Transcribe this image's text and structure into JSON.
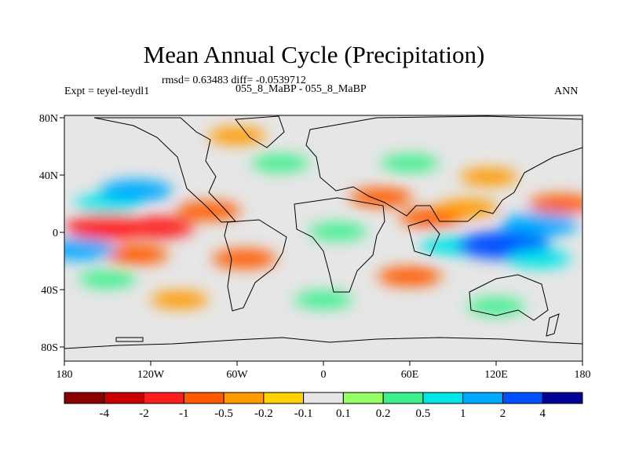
{
  "title": "Mean Annual Cycle (Precipitation)",
  "stats_line": "rmsd= 0.63483 diff= -0.0539712",
  "experiment_label": "Expt = teyel-teydl1",
  "comparison_label": "055_8_MaBP - 055_8_MaBP",
  "season_label": "ANN",
  "chart_data": {
    "type": "heatmap",
    "title": "Mean Annual Cycle (Precipitation)",
    "x_ticks": [
      "180",
      "120W",
      "60W",
      "0",
      "60E",
      "120E",
      "180"
    ],
    "y_ticks": [
      "80N",
      "40N",
      "0",
      "40S",
      "80S"
    ],
    "x_range": [
      -180,
      180
    ],
    "y_range": [
      -90,
      90
    ],
    "colorbar": {
      "colors": [
        "#8c0000",
        "#c80000",
        "#ff1e1e",
        "#ff5a00",
        "#ff9a00",
        "#ffd200",
        "#e6e6e6",
        "#96ff64",
        "#3cf08c",
        "#00e6e6",
        "#00aaff",
        "#0050ff",
        "#000096"
      ],
      "labels": [
        "-4",
        "-2",
        "-1",
        "-0.5",
        "-0.2",
        "-0.1",
        "0.1",
        "0.2",
        "0.5",
        "1",
        "2",
        "4"
      ]
    },
    "anomaly_regions": [
      {
        "lon": -150,
        "lat": 8,
        "value": -2
      },
      {
        "lon": -115,
        "lat": 8,
        "value": -1.2
      },
      {
        "lon": -80,
        "lat": 20,
        "value": -0.7
      },
      {
        "lon": -130,
        "lat": -12,
        "value": -0.7
      },
      {
        "lon": -55,
        "lat": -15,
        "value": -0.7
      },
      {
        "lon": -150,
        "lat": 25,
        "value": 0.8
      },
      {
        "lon": -130,
        "lat": 35,
        "value": 1.2
      },
      {
        "lon": -170,
        "lat": -8,
        "value": 1.2
      },
      {
        "lon": -150,
        "lat": -30,
        "value": 0.3
      },
      {
        "lon": 10,
        "lat": 5,
        "value": 0.3
      },
      {
        "lon": 40,
        "lat": 30,
        "value": -0.6
      },
      {
        "lon": 75,
        "lat": 15,
        "value": -0.7
      },
      {
        "lon": 100,
        "lat": 22,
        "value": -0.5
      },
      {
        "lon": 60,
        "lat": -28,
        "value": -0.7
      },
      {
        "lon": 90,
        "lat": -5,
        "value": 0.8
      },
      {
        "lon": 125,
        "lat": -5,
        "value": 2.5
      },
      {
        "lon": 150,
        "lat": 10,
        "value": 1.5
      },
      {
        "lon": 150,
        "lat": -15,
        "value": 0.6
      },
      {
        "lon": 165,
        "lat": 25,
        "value": -0.7
      },
      {
        "lon": 115,
        "lat": 45,
        "value": -0.3
      },
      {
        "lon": 60,
        "lat": 55,
        "value": 0.3
      },
      {
        "lon": -30,
        "lat": 55,
        "value": 0.3
      },
      {
        "lon": -100,
        "lat": -45,
        "value": -0.3
      },
      {
        "lon": 0,
        "lat": -45,
        "value": 0.3
      },
      {
        "lon": 120,
        "lat": -50,
        "value": 0.3
      },
      {
        "lon": -60,
        "lat": 75,
        "value": -0.3
      }
    ]
  }
}
